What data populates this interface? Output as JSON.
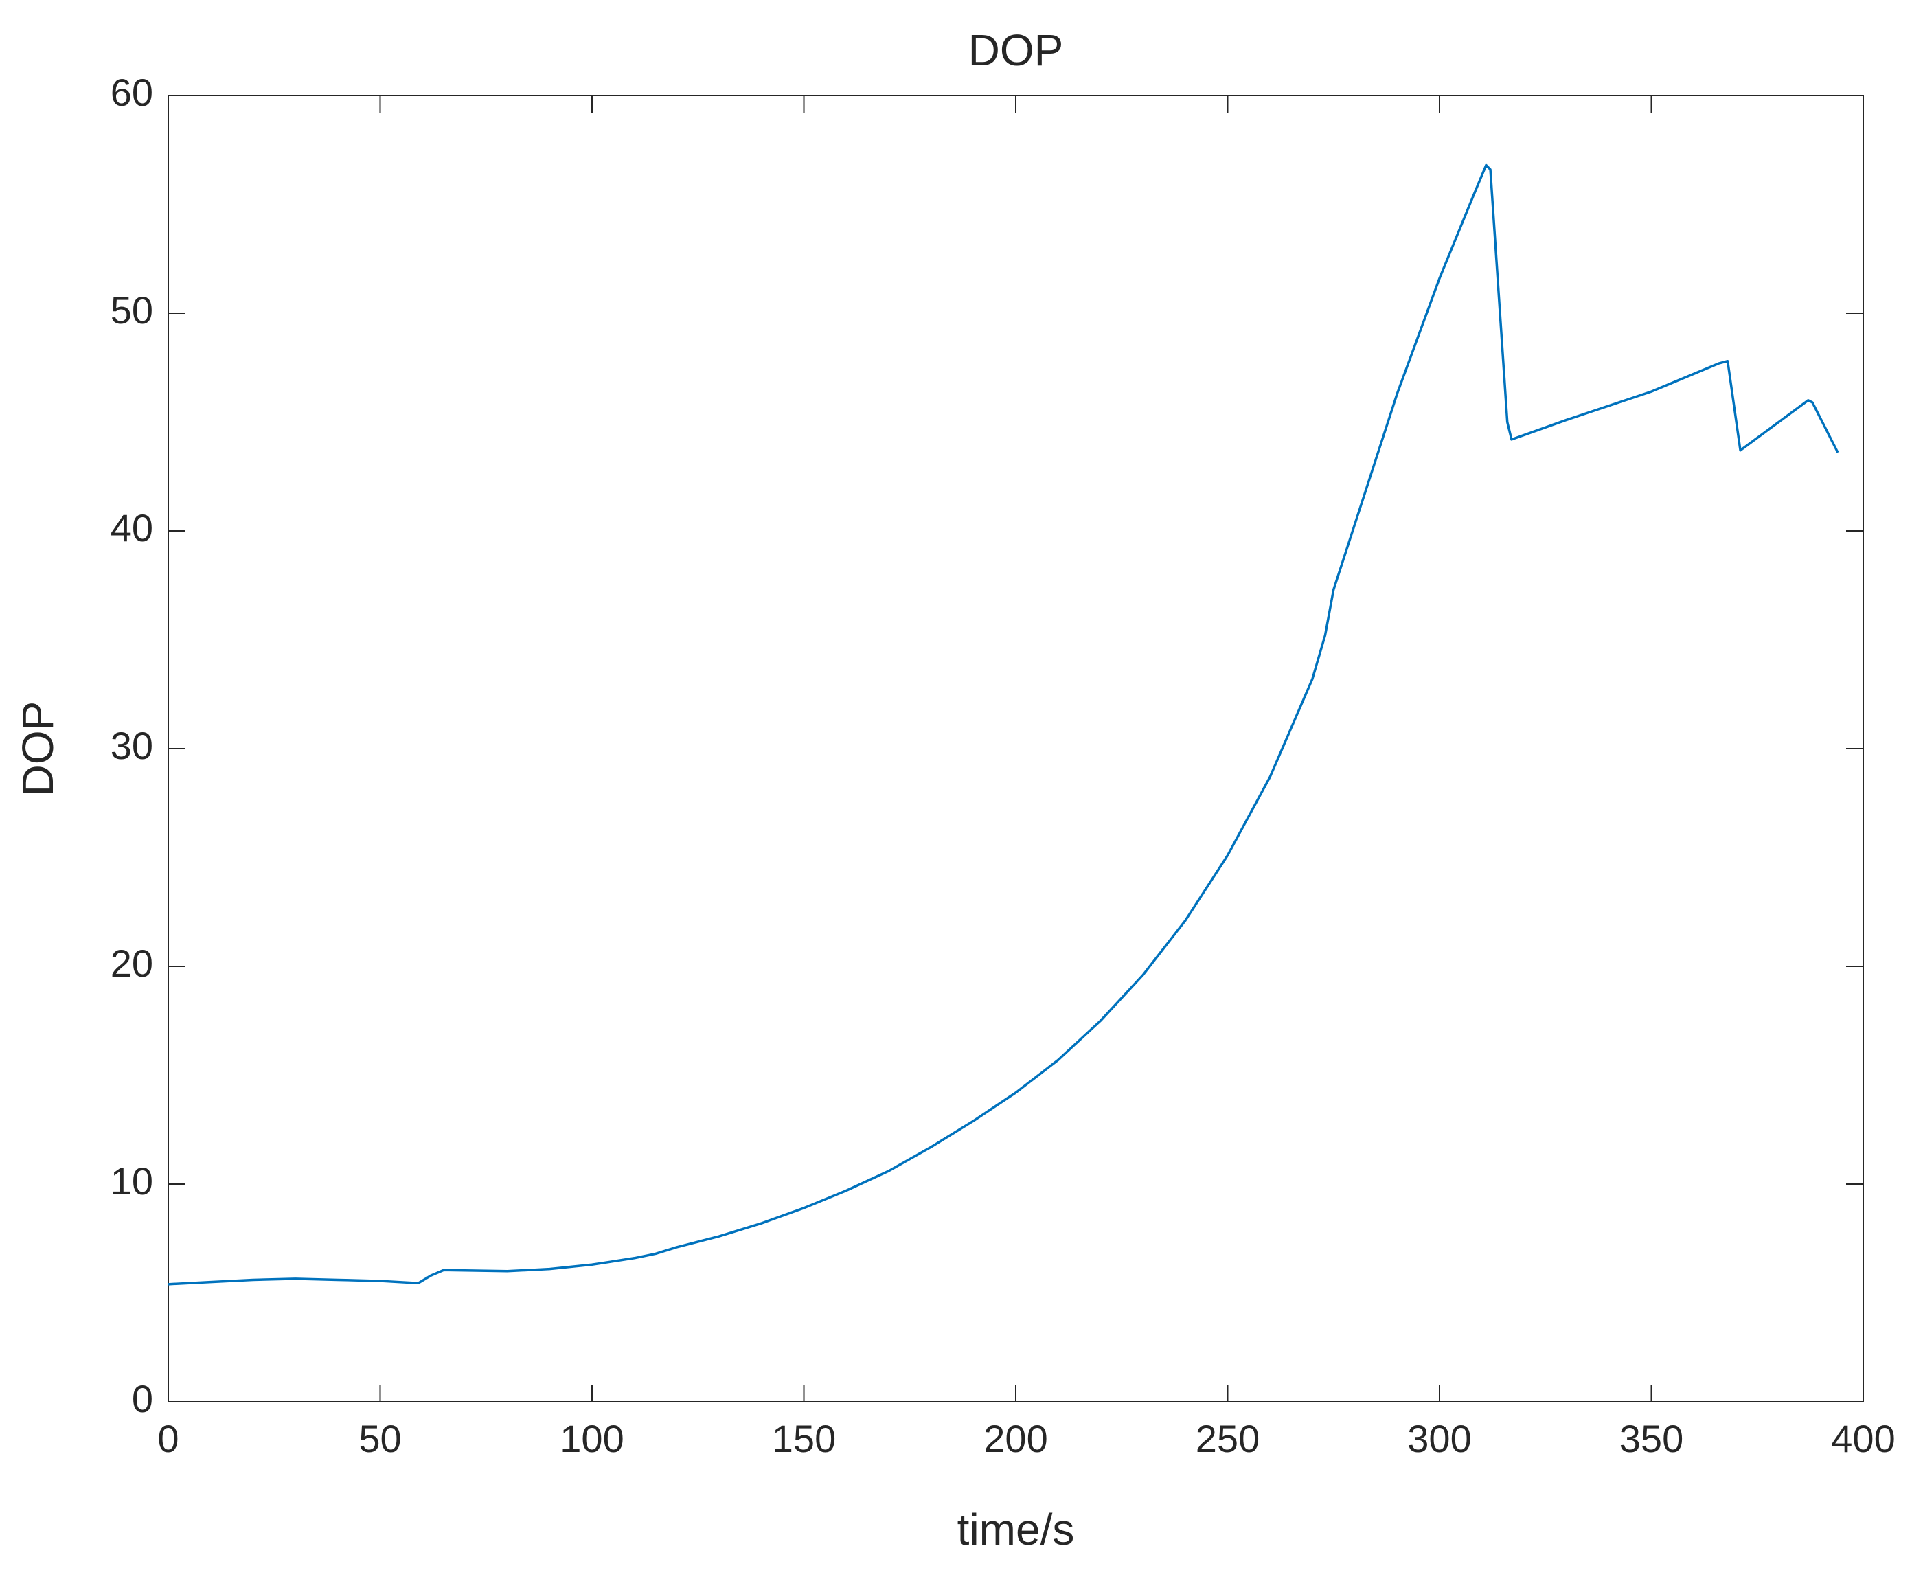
{
  "chart_data": {
    "type": "line",
    "title": "DOP",
    "xlabel": "time/s",
    "ylabel": "DOP",
    "x": [
      0,
      10,
      20,
      30,
      40,
      50,
      59,
      62,
      65,
      80,
      90,
      100,
      110,
      115,
      120,
      130,
      140,
      150,
      160,
      170,
      180,
      190,
      200,
      210,
      220,
      230,
      240,
      250,
      260,
      270,
      273,
      275,
      280,
      290,
      300,
      308,
      311,
      312,
      316,
      317,
      330,
      350,
      366,
      368,
      371,
      387,
      388,
      394
    ],
    "values": [
      5.4,
      5.5,
      5.6,
      5.65,
      5.6,
      5.55,
      5.45,
      5.8,
      6.05,
      6.0,
      6.1,
      6.3,
      6.6,
      6.8,
      7.1,
      7.6,
      8.2,
      8.9,
      9.7,
      10.6,
      11.7,
      12.9,
      14.2,
      15.7,
      17.5,
      19.6,
      22.1,
      25.1,
      28.7,
      33.2,
      35.2,
      37.3,
      40.3,
      46.3,
      51.6,
      55.4,
      56.8,
      56.6,
      45.0,
      44.2,
      45.1,
      46.4,
      47.7,
      47.8,
      43.7,
      46.0,
      45.9,
      43.6
    ],
    "color": "#0072bd",
    "xlim": [
      0,
      400
    ],
    "xticks": [
      0,
      50,
      100,
      150,
      200,
      250,
      300,
      350,
      400
    ],
    "ylim": [
      0,
      60
    ],
    "yticks": [
      0,
      10,
      20,
      30,
      40,
      50,
      60
    ]
  }
}
